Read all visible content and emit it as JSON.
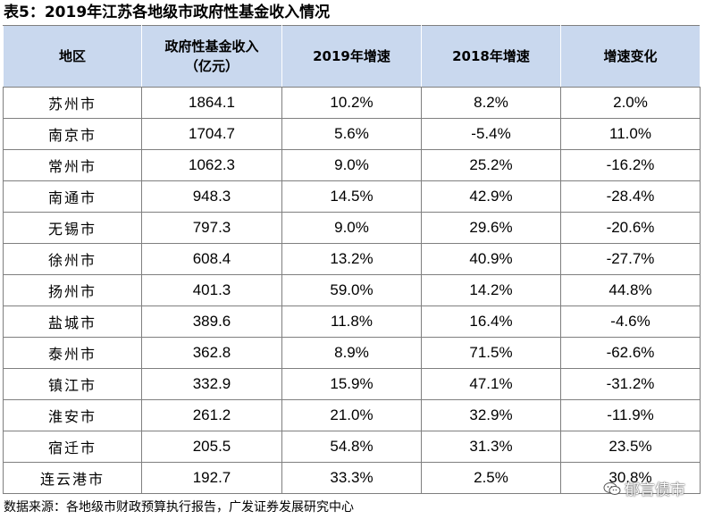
{
  "title": "表5：2019年江苏各地级市政府性基金收入情况",
  "table": {
    "headers": {
      "region": "地区",
      "income_line1": "政府性基金收入",
      "income_line2": "（亿元）",
      "growth_2019": "2019年增速",
      "growth_2018": "2018年增速",
      "change": "增速变化"
    },
    "rows": [
      {
        "region": "苏州市",
        "income": "1864.1",
        "g2019": "10.2%",
        "g2018": "8.2%",
        "change": "2.0%"
      },
      {
        "region": "南京市",
        "income": "1704.7",
        "g2019": "5.6%",
        "g2018": "-5.4%",
        "change": "11.0%"
      },
      {
        "region": "常州市",
        "income": "1062.3",
        "g2019": "9.0%",
        "g2018": "25.2%",
        "change": "-16.2%"
      },
      {
        "region": "南通市",
        "income": "948.3",
        "g2019": "14.5%",
        "g2018": "42.9%",
        "change": "-28.4%"
      },
      {
        "region": "无锡市",
        "income": "797.3",
        "g2019": "9.0%",
        "g2018": "29.6%",
        "change": "-20.6%"
      },
      {
        "region": "徐州市",
        "income": "608.4",
        "g2019": "13.2%",
        "g2018": "40.9%",
        "change": "-27.7%"
      },
      {
        "region": "扬州市",
        "income": "401.3",
        "g2019": "59.0%",
        "g2018": "14.2%",
        "change": "44.8%"
      },
      {
        "region": "盐城市",
        "income": "389.6",
        "g2019": "11.8%",
        "g2018": "16.4%",
        "change": "-4.6%"
      },
      {
        "region": "泰州市",
        "income": "362.8",
        "g2019": "8.9%",
        "g2018": "71.5%",
        "change": "-62.6%"
      },
      {
        "region": "镇江市",
        "income": "332.9",
        "g2019": "15.9%",
        "g2018": "47.1%",
        "change": "-31.2%"
      },
      {
        "region": "淮安市",
        "income": "261.2",
        "g2019": "21.0%",
        "g2018": "32.9%",
        "change": "-11.9%"
      },
      {
        "region": "宿迁市",
        "income": "205.5",
        "g2019": "54.8%",
        "g2018": "31.3%",
        "change": "23.5%"
      },
      {
        "region": "连云港市",
        "income": "192.7",
        "g2019": "33.3%",
        "g2018": "2.5%",
        "change": "30.8%"
      }
    ]
  },
  "source": "数据来源：各地级市财政预算执行报告，广发证券发展研究中心",
  "watermark": {
    "text": "郁言债市",
    "icon": "wechat-icon"
  },
  "colors": {
    "header_bg": "#c9d8ee",
    "grid": "#7f7f7f"
  }
}
